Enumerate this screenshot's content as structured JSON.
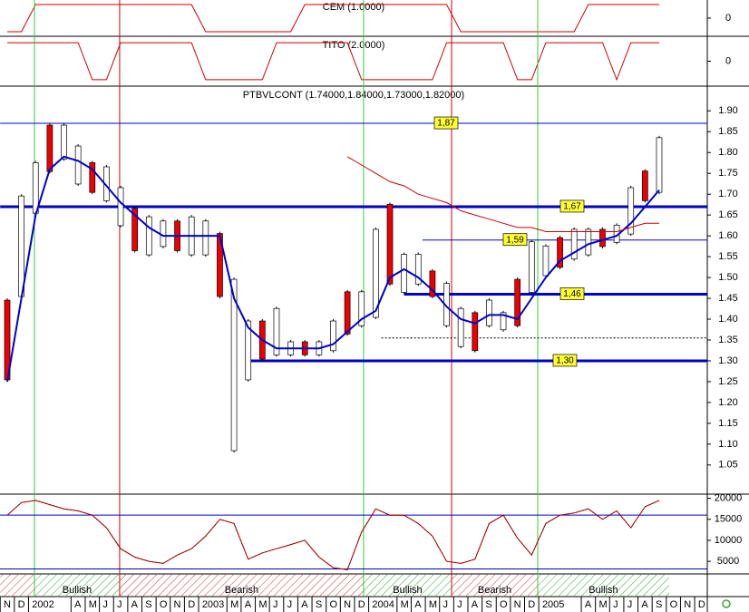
{
  "chart_data": [
    {
      "type": "step",
      "title": "CEM (1.0000)",
      "ylim": [
        -1.2,
        1.2
      ],
      "yticks": [
        0
      ],
      "color": "#cc0000",
      "values": [
        -1,
        -1,
        1,
        1,
        1,
        1,
        1,
        1,
        1,
        1,
        1,
        1,
        1,
        1,
        -1,
        -1,
        -1,
        -1,
        -1,
        -1,
        -1,
        1,
        1,
        1,
        1,
        1,
        1,
        1,
        1,
        1,
        1,
        1,
        -1,
        -1,
        -1,
        -1,
        -1,
        -1,
        -1,
        -1,
        -1,
        1,
        1,
        1,
        1,
        1,
        1,
        null,
        null,
        null
      ]
    },
    {
      "type": "step",
      "title": "TITO (2.0000)",
      "ylim": [
        -1.2,
        1.2
      ],
      "yticks": [
        0
      ],
      "color": "#cc0000",
      "values": [
        1,
        1,
        1,
        1,
        1,
        1,
        -1,
        -1,
        1,
        1,
        1,
        1,
        1,
        1,
        -1,
        -1,
        -1,
        -1,
        -1,
        1,
        1,
        1,
        1,
        1,
        1,
        -1,
        -1,
        -1,
        -1,
        -1,
        -1,
        1,
        1,
        1,
        1,
        1,
        -1,
        -1,
        1,
        1,
        1,
        1,
        1,
        -1,
        1,
        1,
        1,
        null,
        null,
        null
      ]
    },
    {
      "type": "range",
      "title": "PTBVLCONT (1.74000,1.84000,1.73000,1.82000)",
      "ylim": [
        0.98,
        1.955
      ],
      "yticks": [
        1.05,
        {
          "value": 1.1,
          "label": "1.10"
        },
        1.15,
        {
          "value": 1.2,
          "label": "1.20"
        },
        1.25,
        {
          "value": 1.3,
          "label": "1.30"
        },
        1.35,
        {
          "value": 1.4,
          "label": "1.40"
        },
        1.45,
        {
          "value": 1.5,
          "label": "1.50"
        },
        1.55,
        {
          "value": 1.6,
          "label": "1.60"
        },
        1.65,
        {
          "value": 1.7,
          "label": "1.70"
        },
        1.75,
        {
          "value": 1.8,
          "label": "1.80"
        },
        1.85,
        {
          "value": 1.9,
          "label": "1.90"
        }
      ],
      "high": [
        1.45,
        1.7,
        1.78,
        1.87,
        1.87,
        1.82,
        1.78,
        1.77,
        1.72,
        1.67,
        1.65,
        1.64,
        1.64,
        1.65,
        1.64,
        1.61,
        1.5,
        1.4,
        1.4,
        1.43,
        1.35,
        1.35,
        1.35,
        1.4,
        1.47,
        1.47,
        1.62,
        1.68,
        1.56,
        1.56,
        1.52,
        1.49,
        1.43,
        1.42,
        1.45,
        1.42,
        1.5,
        1.59,
        1.58,
        1.6,
        1.62,
        1.62,
        1.62,
        1.63,
        1.72,
        1.76,
        1.84,
        null,
        null,
        null
      ],
      "low": [
        1.25,
        1.45,
        1.65,
        1.75,
        1.78,
        1.72,
        1.7,
        1.68,
        1.62,
        1.56,
        1.55,
        1.57,
        1.56,
        1.55,
        1.55,
        1.45,
        1.08,
        1.25,
        1.3,
        1.31,
        1.31,
        1.31,
        1.31,
        1.32,
        1.36,
        1.38,
        1.4,
        1.48,
        1.46,
        1.48,
        1.45,
        1.38,
        1.33,
        1.32,
        1.38,
        1.37,
        1.38,
        1.46,
        1.5,
        1.52,
        1.54,
        1.55,
        1.57,
        1.58,
        1.6,
        1.68,
        1.7,
        null,
        null,
        null
      ],
      "lines": [
        {
          "color": "#0000cc",
          "values": [
            1.25,
            1.45,
            1.65,
            1.76,
            1.79,
            1.78,
            1.76,
            1.72,
            1.68,
            1.65,
            1.62,
            1.6,
            1.6,
            1.6,
            1.6,
            1.6,
            1.45,
            1.38,
            1.35,
            1.33,
            1.33,
            1.33,
            1.33,
            1.34,
            1.37,
            1.4,
            1.42,
            1.5,
            1.52,
            1.5,
            1.47,
            1.43,
            1.4,
            1.39,
            1.41,
            1.41,
            1.4,
            1.45,
            1.5,
            1.54,
            1.56,
            1.58,
            1.59,
            1.6,
            1.63,
            1.67,
            1.71,
            null,
            null,
            null
          ]
        },
        {
          "color": "#cc0000",
          "values": [
            null,
            null,
            null,
            null,
            null,
            null,
            null,
            null,
            null,
            null,
            null,
            null,
            null,
            null,
            null,
            null,
            null,
            null,
            null,
            null,
            null,
            null,
            null,
            null,
            1.79,
            1.77,
            1.75,
            1.73,
            1.72,
            1.7,
            1.69,
            1.68,
            1.66,
            1.65,
            1.64,
            1.63,
            1.62,
            1.62,
            1.61,
            1.61,
            1.61,
            1.61,
            1.61,
            1.61,
            1.62,
            1.63,
            1.63,
            null,
            null,
            null
          ]
        }
      ],
      "levels": [
        {
          "value": 1.87,
          "label": "1,87",
          "from": -0.5,
          "thick": false
        },
        {
          "value": 1.67,
          "label": "1,67",
          "from": -0.5,
          "thick": true
        },
        {
          "value": 1.59,
          "label": "1,59",
          "from": 29.3,
          "thick": false
        },
        {
          "value": 1.46,
          "label": "1,46",
          "from": 28.0,
          "thick": true
        },
        {
          "value": 1.3,
          "label": "1,30",
          "from": 16.8,
          "thick": true
        },
        {
          "value": 1.355,
          "from": 26.4,
          "dashed": true
        }
      ],
      "level_color": "#0000cc",
      "signals": [
        {
          "x": 1.92,
          "color": "#33cc33"
        },
        {
          "x": 7.93,
          "color": "#cc0000"
        },
        {
          "x": 25.14,
          "color": "#33cc33"
        },
        {
          "x": 31.35,
          "color": "#cc0000"
        },
        {
          "x": 37.43,
          "color": "#33cc33"
        }
      ]
    },
    {
      "type": "line",
      "categories": [
        "N",
        "D",
        "2002",
        null,
        null,
        "A",
        "M",
        "J",
        "J",
        "A",
        "S",
        "O",
        "N",
        "D",
        "2003",
        null,
        "M",
        "A",
        "M",
        "J",
        "J",
        "A",
        "S",
        "O",
        "N",
        "D",
        "2004",
        null,
        "M",
        "A",
        "M",
        "J",
        "J",
        "A",
        "S",
        "O",
        "N",
        "D",
        "2005",
        null,
        null,
        "A",
        "M",
        "J",
        "J",
        "A",
        "S",
        "O",
        "N",
        "D"
      ],
      "values": [
        16000,
        19000,
        19500,
        18500,
        17500,
        17000,
        16000,
        13000,
        8000,
        6000,
        5000,
        4500,
        6500,
        8000,
        11000,
        15000,
        14000,
        5500,
        7000,
        8000,
        9000,
        10000,
        6000,
        3500,
        3000,
        12000,
        17500,
        16000,
        16000,
        14000,
        11000,
        5000,
        4500,
        5500,
        14000,
        16000,
        10500,
        6500,
        14000,
        16000,
        16500,
        17500,
        15000,
        17000,
        13000,
        18000,
        19500,
        null,
        null,
        null
      ],
      "color": "#990000",
      "ylim": [
        2000,
        21000
      ],
      "yticks": [
        5000,
        10000,
        15000,
        20000
      ],
      "hlines": [
        16000,
        3200
      ],
      "hline_color": "#0000cc",
      "regimes": [
        {
          "from": -0.5,
          "to": 1.92,
          "color": "#cc3333"
        },
        {
          "from": 1.92,
          "to": 7.93,
          "color": "#33aa33",
          "label": "Bullish"
        },
        {
          "from": 7.93,
          "to": 25.14,
          "color": "#cc3333",
          "label": "Bearish"
        },
        {
          "from": 25.14,
          "to": 31.35,
          "color": "#33aa33",
          "label": "Bullish"
        },
        {
          "from": 31.35,
          "to": 37.43,
          "color": "#cc3333",
          "label": "Bearish"
        },
        {
          "from": 37.43,
          "to": 46.7,
          "color": "#33aa33",
          "label": "Bullish"
        }
      ]
    }
  ]
}
